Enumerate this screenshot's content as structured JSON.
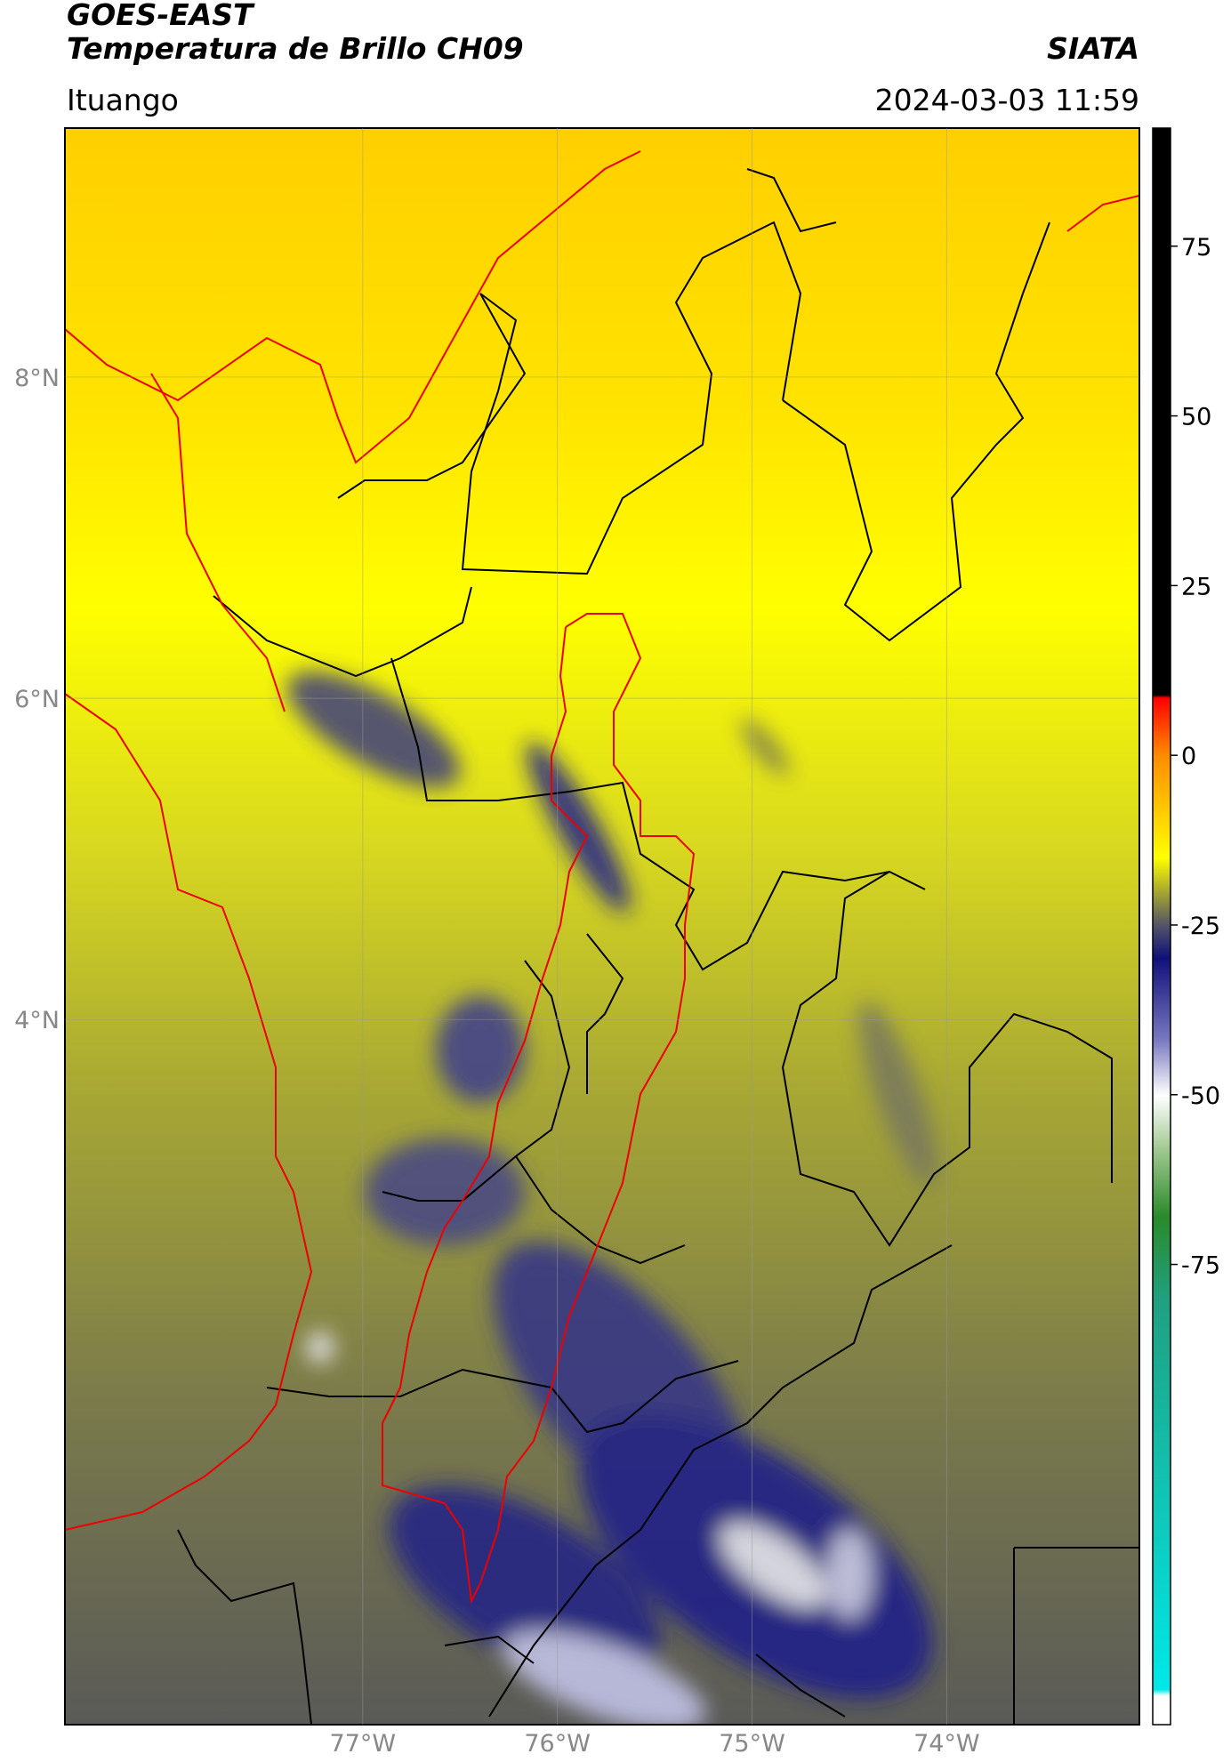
{
  "header": {
    "title": "GOES-EAST",
    "subtitle": "Temperatura de Brillo CH09",
    "brand": "SIATA",
    "location": "Ituango",
    "datetime": "2024-03-03 11:59"
  },
  "map": {
    "lonlim": [
      -78.53,
      -73.01
    ],
    "latlim": [
      -0.39,
      9.55
    ],
    "xticks": [
      {
        "value": -77,
        "label": "77°W"
      },
      {
        "value": -76,
        "label": "76°W"
      },
      {
        "value": -75,
        "label": "75°W"
      },
      {
        "value": -74,
        "label": "74°W"
      }
    ],
    "yticks": [
      {
        "value": 8,
        "label": "8°N"
      },
      {
        "value": 6,
        "label": "6°N"
      },
      {
        "value": 4,
        "label": "4°N"
      }
    ],
    "grid": true
  },
  "colorbar": {
    "lim": [
      -142.8,
      92.4
    ],
    "ticks": [
      75,
      50,
      25,
      0,
      -25,
      -50,
      -75
    ]
  }
}
